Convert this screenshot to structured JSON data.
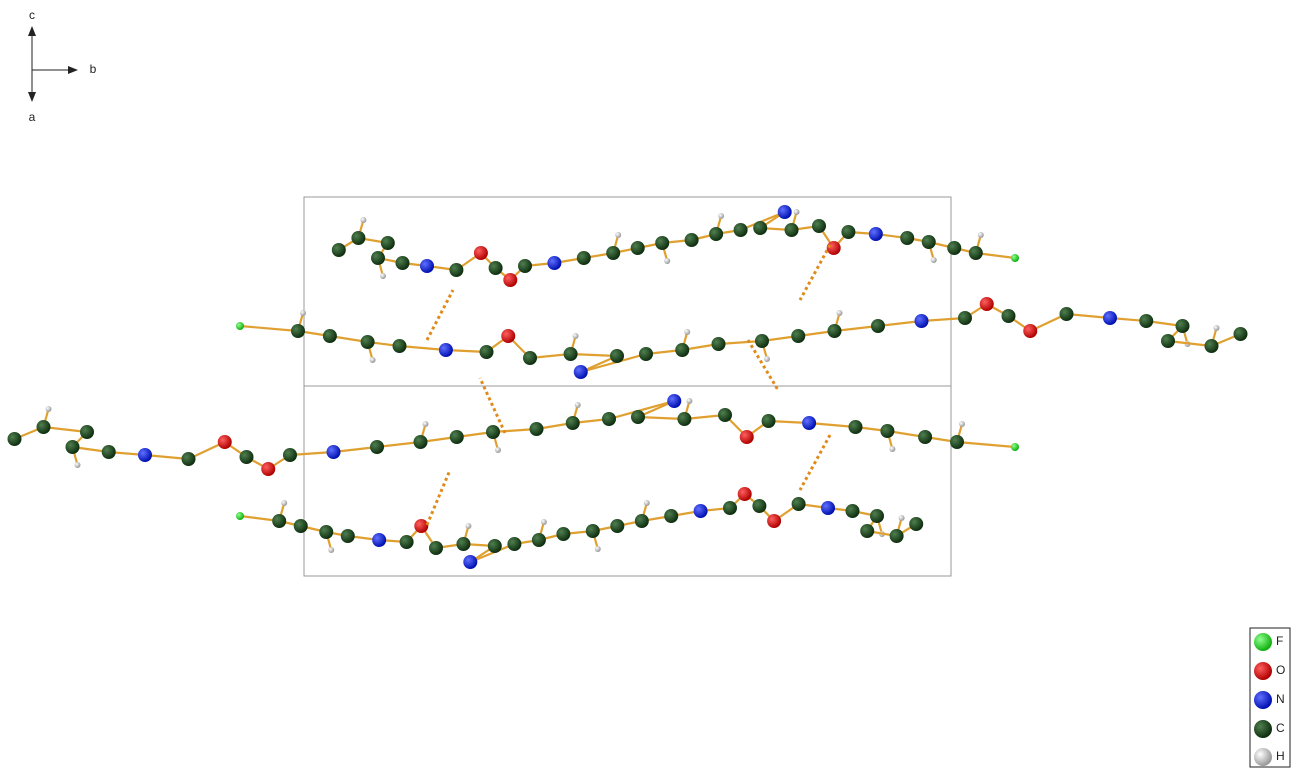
{
  "axes": {
    "labels": [
      "c",
      "b",
      "a"
    ]
  },
  "legend": {
    "items": [
      {
        "label": "F"
      },
      {
        "label": "O"
      },
      {
        "label": "N"
      },
      {
        "label": "C"
      },
      {
        "label": "H"
      }
    ]
  }
}
